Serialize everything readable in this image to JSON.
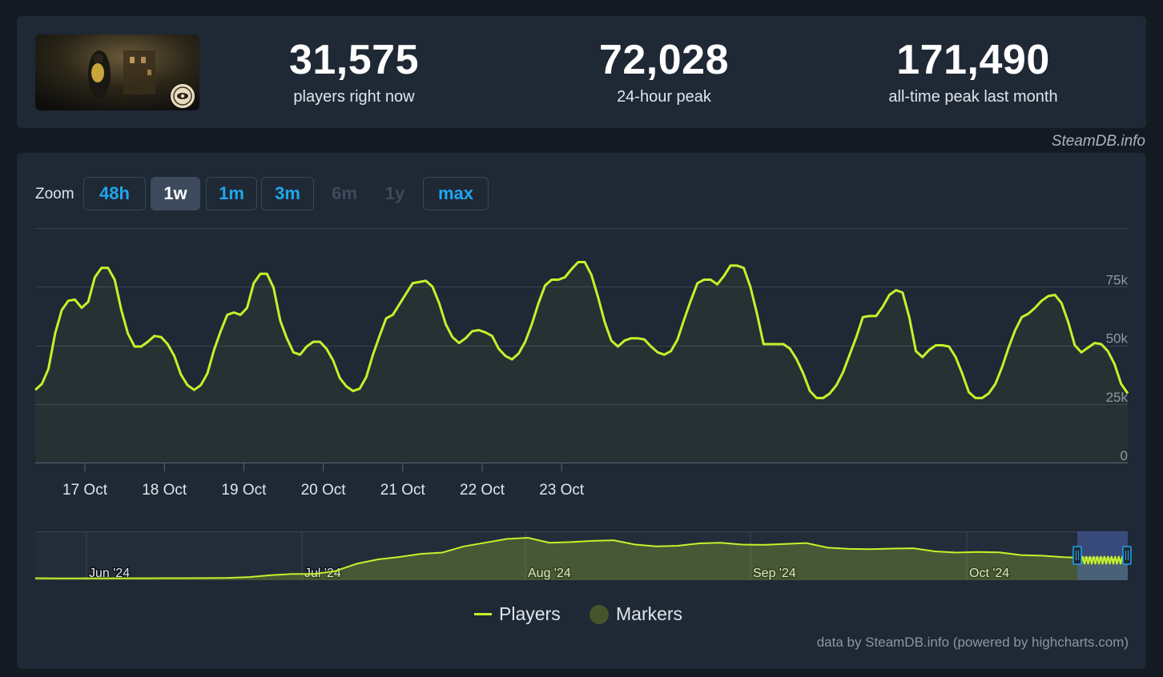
{
  "stats": [
    {
      "value": "31,575",
      "label": "players right now"
    },
    {
      "value": "72,028",
      "label": "24-hour peak"
    },
    {
      "value": "171,490",
      "label": "all-time peak last month"
    }
  ],
  "credit_top": "SteamDB.info",
  "zoom": {
    "label": "Zoom",
    "buttons": [
      {
        "label": "48h",
        "state": "normal"
      },
      {
        "label": "1w",
        "state": "active"
      },
      {
        "label": "1m",
        "state": "normal"
      },
      {
        "label": "3m",
        "state": "normal"
      },
      {
        "label": "6m",
        "state": "disabled"
      },
      {
        "label": "1y",
        "state": "disabled"
      },
      {
        "label": "max",
        "state": "normal"
      }
    ]
  },
  "legend": {
    "players": "Players",
    "markers": "Markers"
  },
  "credit_bottom": "data by SteamDB.info (powered by highcharts.com)",
  "colors": {
    "line": "#c6f12a",
    "background": "#1f2835",
    "grid": "#3a4453",
    "accent": "#1fa6ec"
  },
  "chart_data": {
    "type": "line",
    "series": [
      {
        "name": "Players",
        "x_start": "2024-10-16T09:00",
        "step_hours": 2,
        "values": [
          31000,
          33500,
          40000,
          55000,
          65000,
          69000,
          69500,
          66000,
          68500,
          79000,
          83000,
          83000,
          78000,
          65000,
          55000,
          49500,
          49500,
          51500,
          54000,
          53500,
          50500,
          45500,
          37500,
          33000,
          31000,
          33000,
          38000,
          48000,
          56000,
          63000,
          64000,
          63000,
          66000,
          76500,
          80500,
          80500,
          74500,
          60500,
          53000,
          47000,
          46000,
          49500,
          51500,
          51500,
          48500,
          43500,
          36000,
          32500,
          30500,
          31500,
          36500,
          46000,
          54000,
          61500,
          63000,
          67500,
          72000,
          76500,
          77000,
          77500,
          75000,
          68000,
          59000,
          53500,
          51000,
          53000,
          56000,
          56500,
          55500,
          54000,
          48500,
          45500,
          44000,
          46500,
          51500,
          59000,
          68000,
          75500,
          78000,
          78000,
          79000,
          82500,
          85500,
          85500,
          80000,
          70500,
          60000,
          52000,
          49500,
          52000,
          53000,
          53000,
          52500,
          49500,
          47000,
          46000,
          47500,
          52500,
          61000,
          69000,
          76500,
          78000,
          78000,
          76000,
          79500,
          84000,
          84000,
          83000,
          75000,
          63500,
          50500,
          50500,
          50500,
          50500,
          48500,
          44000,
          38000,
          30500,
          27500,
          27500,
          29500,
          33000,
          38500,
          46000,
          53500,
          62000,
          62500,
          62500,
          66500,
          71500,
          73500,
          72500,
          62000,
          47500,
          45000,
          48000,
          50000,
          50000,
          49500,
          45000,
          38000,
          30000,
          27500,
          27500,
          29500,
          33500,
          40500,
          49000,
          56500,
          62000,
          63500,
          66000,
          69000,
          71000,
          71500,
          68000,
          60000,
          50000,
          47000,
          49000,
          51000,
          50500,
          47500,
          42000,
          33500,
          29500
        ]
      }
    ],
    "x_ticks": [
      "17 Oct",
      "18 Oct",
      "19 Oct",
      "20 Oct",
      "21 Oct",
      "22 Oct",
      "23 Oct"
    ],
    "y_ticks": [
      "0",
      "25k",
      "50k",
      "75k"
    ],
    "ylim": [
      0,
      100000
    ],
    "grid": true,
    "navigator": {
      "labels": [
        "Jun '24",
        "Jul '24",
        "Aug '24",
        "Sep '24",
        "Oct '24"
      ],
      "values": [
        600,
        400,
        400,
        500,
        500,
        500,
        600,
        700,
        800,
        1200,
        2500,
        5500,
        7500,
        7500,
        12000,
        24000,
        31000,
        35000,
        40000,
        42000,
        52000,
        58000,
        64000,
        66000,
        58000,
        59000,
        61000,
        62000,
        55000,
        52000,
        53000,
        57000,
        58000,
        55000,
        54500,
        56000,
        57500,
        50000,
        48000,
        47500,
        48500,
        49000,
        44000,
        42000,
        43000,
        42500,
        38000,
        37000,
        34500,
        33500,
        33000,
        28000
      ]
    }
  }
}
